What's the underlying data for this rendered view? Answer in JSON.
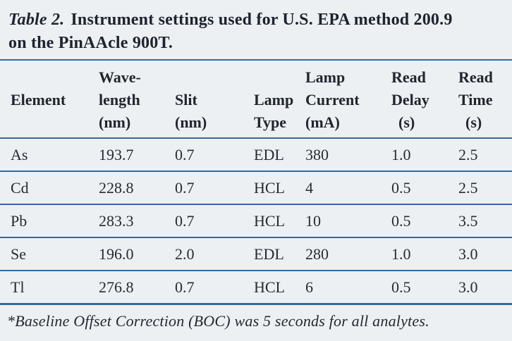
{
  "title": {
    "label": "Table 2.",
    "text": "Instrument settings used for U.S. EPA method 200.9 on the PinAAcle 900T."
  },
  "colors": {
    "background": "#edf0f2",
    "rule": "#35699e",
    "text": "#262b34"
  },
  "table": {
    "header": [
      {
        "l1": "",
        "l2": "Element",
        "l3": ""
      },
      {
        "l1": "Wave-",
        "l2": "length",
        "l3": "(nm)"
      },
      {
        "l1": "",
        "l2": "Slit",
        "l3": "(nm)"
      },
      {
        "l1": "",
        "l2": "Lamp",
        "l3": "Type"
      },
      {
        "l1": "Lamp",
        "l2": "Current",
        "l3": "(mA)"
      },
      {
        "l1": "Read",
        "l2": "Delay",
        "l3": "(s)"
      },
      {
        "l1": "Read",
        "l2": "Time",
        "l3": "(s)"
      }
    ],
    "rows": [
      [
        "As",
        "193.7",
        "0.7",
        "EDL",
        "380",
        "1.0",
        "2.5"
      ],
      [
        "Cd",
        "228.8",
        "0.7",
        "HCL",
        "4",
        "0.5",
        "2.5"
      ],
      [
        "Pb",
        "283.3",
        "0.7",
        "HCL",
        "10",
        "0.5",
        "3.5"
      ],
      [
        "Se",
        "196.0",
        "2.0",
        "EDL",
        "280",
        "1.0",
        "3.0"
      ],
      [
        "Tl",
        "276.8",
        "0.7",
        "HCL",
        "6",
        "0.5",
        "3.0"
      ]
    ]
  },
  "footnote": "*Baseline Offset Correction (BOC) was 5 seconds for all analytes."
}
